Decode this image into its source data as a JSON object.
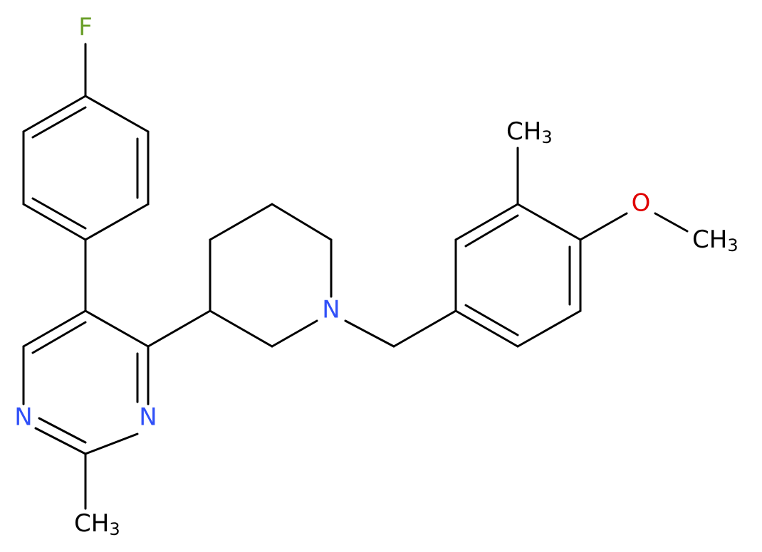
{
  "atoms": {
    "fluorine": "F",
    "pyrimidine_n1": "N",
    "pyrimidine_n3": "N",
    "piperidine_n": "N",
    "oxygen": "O",
    "pyrimidine_methyl": {
      "main": "CH",
      "subscript": "3"
    },
    "aryl_methyl": {
      "main": "CH",
      "subscript": "3"
    },
    "methoxy_methyl": {
      "main": "CH",
      "subscript": "3"
    }
  }
}
